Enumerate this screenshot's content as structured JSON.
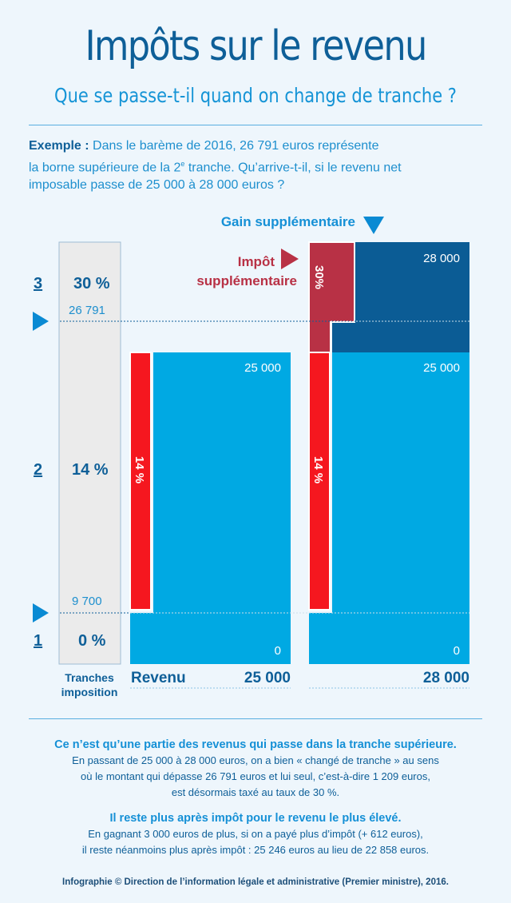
{
  "header": {
    "title": "Impôts sur le revenu",
    "subtitle": "Que se passe-t-il quand on change de tranche ?"
  },
  "intro": {
    "label": "Exemple :",
    "line1": "Dans le barème de 2016, 26 791 euros représente",
    "line2_prefix": "la borne supérieure de la 2",
    "line2_sup": "e",
    "line2_suffix": " tranche. Qu’arrive-t-il, si le revenu net",
    "line3": "imposable passe de 25 000 à 28 000 euros ?"
  },
  "diagram": {
    "colors": {
      "income": "#00a9e3",
      "income_extra": "#0b5c95",
      "tax": "#f5171f",
      "tax_extra": "#b83145",
      "bracket_bg": "#ebebeb"
    },
    "brackets": [
      {
        "number": "3",
        "rate": "30 %"
      },
      {
        "number": "2",
        "rate": "14 %"
      },
      {
        "number": "1",
        "rate": "0 %"
      }
    ],
    "thresholds": {
      "upper": "26 791",
      "lower": "9 700"
    },
    "brackets_caption_line1": "Tranches",
    "brackets_caption_line2": "imposition",
    "revenue_label": "Revenu",
    "gain_label": "Gain supplémentaire",
    "extra_tax_line1": "Impôt",
    "extra_tax_line2": "supplémentaire",
    "bars": [
      {
        "top_label": "25 000",
        "bottom_label": "0",
        "tax_label": "14 %",
        "axis_value": "25 000"
      },
      {
        "top_label": "25 000",
        "bottom_label": "0",
        "tax_label": "14 %",
        "axis_value": "28 000",
        "extra_top_label": "28 000",
        "extra_tax_label": "30%"
      }
    ]
  },
  "notes": {
    "heading1": "Ce n’est qu’une partie des revenus qui passe dans la tranche supérieure.",
    "body1_line1": "En passant de 25 000 à 28 000 euros, on a bien « changé de tranche » au sens",
    "body1_line2": "où le montant qui dépasse 26 791 euros et lui seul, c’est-à-dire 1 209 euros,",
    "body1_line3": "est désormais taxé au taux de 30 %.",
    "heading2": "Il reste plus après impôt pour le revenu le plus élevé.",
    "body2_line1": "En gagnant 3 000 euros de plus, si on a payé plus d’impôt (+ 612 euros),",
    "body2_line2": "il reste néanmoins plus après impôt : 25 246 euros au lieu de 22 858 euros."
  },
  "credit": "Infographie © Direction de l’information légale et administrative (Premier ministre), 2016."
}
